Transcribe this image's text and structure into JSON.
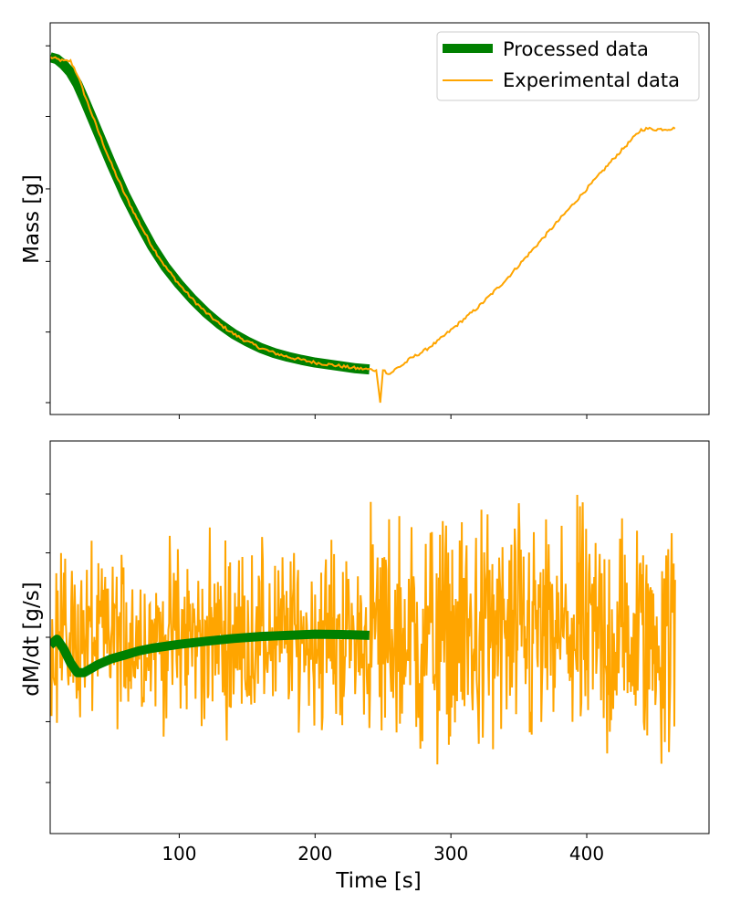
{
  "chart_data": [
    {
      "type": "line",
      "title": "",
      "xlabel": "",
      "ylabel": "Mass [g]",
      "xlim": [
        5,
        490
      ],
      "ylim": [
        0,
        1
      ],
      "y_tick_labels_shown": false,
      "grid": false,
      "legend": {
        "placement": "top-right",
        "entries": [
          "Processed data",
          "Experimental data"
        ]
      },
      "series": [
        {
          "name": "Processed data",
          "color": "#008000",
          "x": [
            5,
            10,
            15,
            20,
            25,
            30,
            40,
            50,
            60,
            70,
            80,
            90,
            100,
            110,
            120,
            130,
            140,
            150,
            160,
            170,
            180,
            190,
            200,
            210,
            220,
            230,
            240
          ],
          "y": [
            0.905,
            0.9,
            0.885,
            0.865,
            0.835,
            0.795,
            0.71,
            0.625,
            0.545,
            0.475,
            0.41,
            0.355,
            0.31,
            0.27,
            0.235,
            0.205,
            0.18,
            0.16,
            0.143,
            0.13,
            0.12,
            0.112,
            0.105,
            0.1,
            0.095,
            0.09,
            0.087
          ]
        },
        {
          "name": "Experimental data",
          "color": "#ffa500",
          "x": [
            5,
            10,
            15,
            20,
            25,
            30,
            40,
            50,
            60,
            70,
            80,
            90,
            100,
            110,
            120,
            130,
            140,
            150,
            160,
            170,
            180,
            190,
            200,
            210,
            220,
            230,
            240,
            245,
            248,
            250,
            255,
            260,
            265,
            270,
            280,
            290,
            300,
            320,
            340,
            360,
            380,
            400,
            420,
            440,
            445,
            450,
            465
          ],
          "y": [
            0.905,
            0.9,
            0.895,
            0.895,
            0.86,
            0.81,
            0.715,
            0.625,
            0.545,
            0.475,
            0.41,
            0.355,
            0.31,
            0.27,
            0.235,
            0.205,
            0.18,
            0.16,
            0.143,
            0.13,
            0.12,
            0.112,
            0.105,
            0.1,
            0.095,
            0.09,
            0.087,
            0.085,
            0.0,
            0.085,
            0.075,
            0.09,
            0.1,
            0.115,
            0.135,
            0.16,
            0.19,
            0.25,
            0.32,
            0.4,
            0.48,
            0.56,
            0.64,
            0.715,
            0.718,
            0.716,
            0.718
          ]
        }
      ],
      "x_ticks": []
    },
    {
      "type": "line",
      "title": "",
      "xlabel": "Time [s]",
      "ylabel": "dM/dt [g/s]",
      "xlim": [
        5,
        490
      ],
      "ylim": [
        0,
        1
      ],
      "y_tick_labels_shown": false,
      "grid": false,
      "x_ticks": [
        {
          "value": 100,
          "label": "100"
        },
        {
          "value": 200,
          "label": "200"
        },
        {
          "value": 300,
          "label": "300"
        },
        {
          "value": 400,
          "label": "400"
        }
      ],
      "series": [
        {
          "name": "Experimental data",
          "color": "#ffa500",
          "x_range": [
            5,
            465
          ],
          "noise_center": 0.5,
          "noise_amplitude_before_240": 0.32,
          "noise_amplitude_after_240": 0.45
        },
        {
          "name": "Processed data",
          "color": "#008000",
          "x": [
            5,
            10,
            15,
            20,
            25,
            30,
            40,
            50,
            60,
            70,
            80,
            100,
            120,
            140,
            160,
            180,
            200,
            220,
            240
          ],
          "y": [
            0.48,
            0.495,
            0.47,
            0.435,
            0.41,
            0.41,
            0.43,
            0.445,
            0.455,
            0.465,
            0.472,
            0.482,
            0.49,
            0.497,
            0.502,
            0.505,
            0.508,
            0.507,
            0.505
          ]
        }
      ]
    }
  ]
}
